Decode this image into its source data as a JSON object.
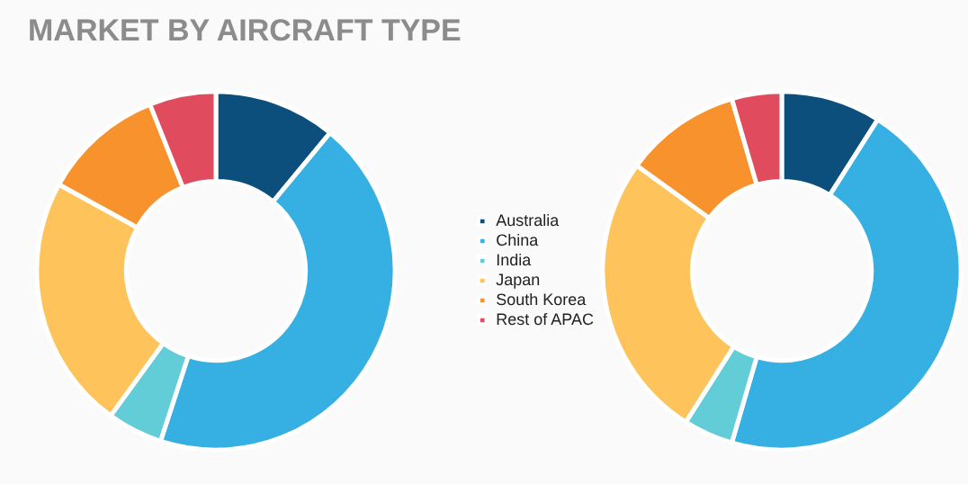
{
  "chart_data": [
    {
      "type": "donut",
      "title": "MARKET BY AIRCRAFT TYPE",
      "categories": [
        "Australia",
        "China",
        "India",
        "Japan",
        "South Korea",
        "Rest of APAC"
      ],
      "values": [
        11,
        44,
        5,
        23,
        11,
        6
      ],
      "colors": [
        "#0d4f7c",
        "#36b0e2",
        "#63cdd7",
        "#fec35a",
        "#f7922d",
        "#e04b5e"
      ],
      "legend": "right"
    },
    {
      "type": "donut",
      "categories": [
        null,
        null,
        null,
        null,
        null,
        null
      ],
      "values": [
        9,
        45.5,
        4.5,
        26,
        10.5,
        4.5
      ],
      "colors": [
        "#0d4f7c",
        "#36b0e2",
        "#63cdd7",
        "#fec35a",
        "#f7922d",
        "#e04b5e"
      ]
    }
  ]
}
